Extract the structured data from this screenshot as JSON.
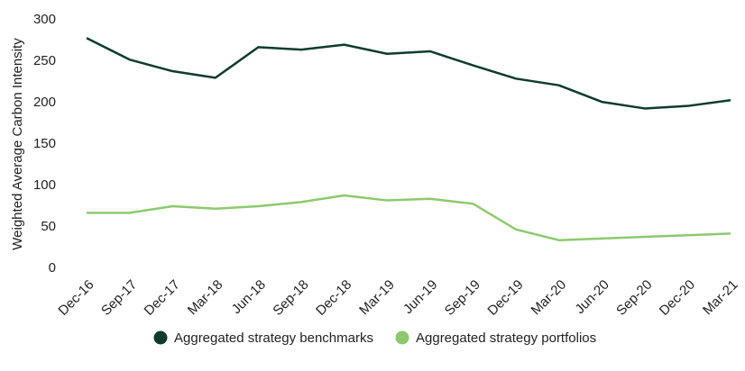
{
  "chart_data": {
    "type": "line",
    "y_label": "Weighted Average Carbon Intensity",
    "categories": [
      "Dec-16",
      "Sep-17",
      "Dec-17",
      "Mar-18",
      "Jun-18",
      "Sep-18",
      "Dec-18",
      "Mar-19",
      "Jun-19",
      "Sep-19",
      "Dec-19",
      "Mar-20",
      "Jun-20",
      "Sep-20",
      "Dec-20",
      "Mar-21"
    ],
    "series": [
      {
        "name": "Aggregated strategy benchmarks",
        "color": "#0f3b2e",
        "values": [
          278,
          252,
          238,
          230,
          267,
          264,
          270,
          259,
          262,
          245,
          229,
          221,
          201,
          193,
          196,
          203
        ]
      },
      {
        "name": "Aggregated strategy portfolios",
        "color": "#8cc96e",
        "values": [
          67,
          67,
          75,
          72,
          75,
          80,
          88,
          82,
          84,
          78,
          47,
          34,
          36,
          38,
          40,
          42
        ]
      }
    ],
    "ylim": [
      0,
      300
    ],
    "yticks": [
      0,
      50,
      100,
      150,
      200,
      250,
      300
    ],
    "grid": false,
    "legend": "bottom"
  }
}
